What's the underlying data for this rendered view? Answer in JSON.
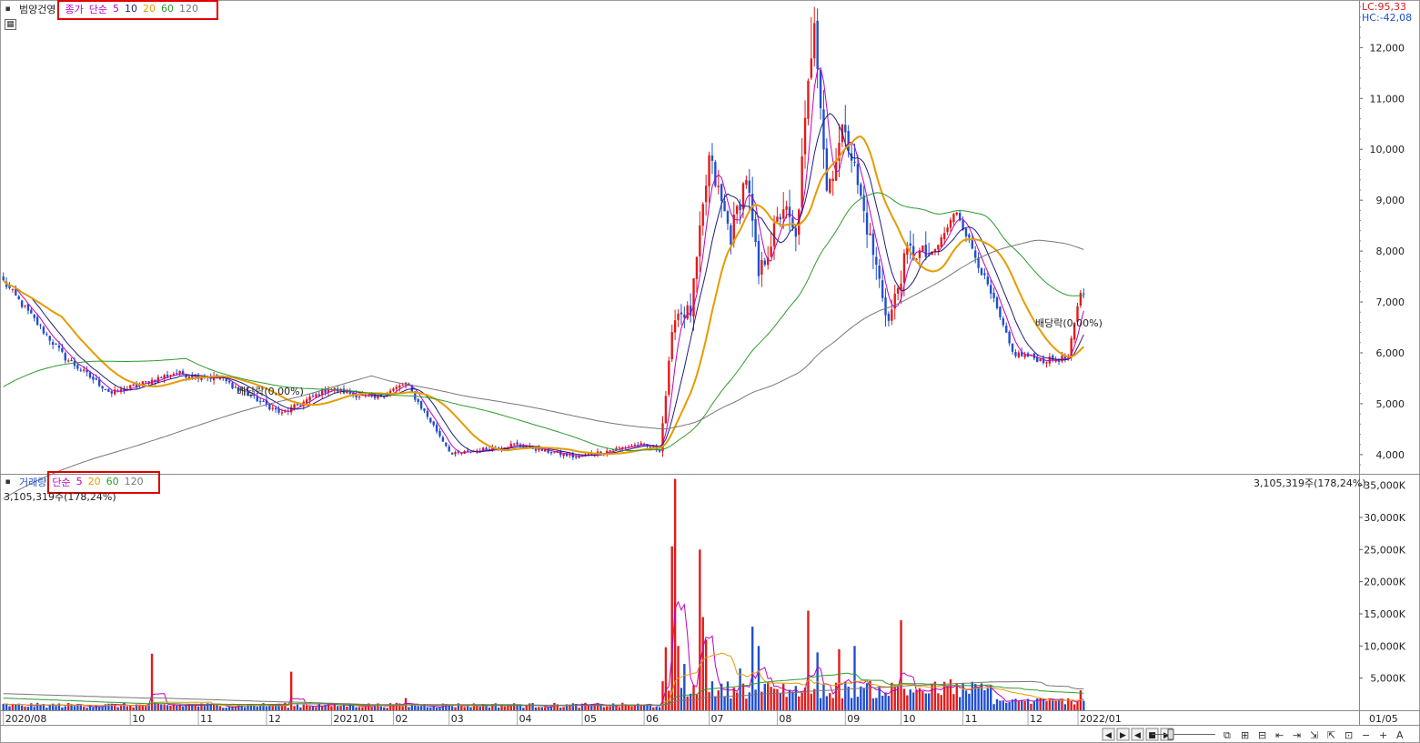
{
  "stock_name": "범양건영",
  "price_panel": {
    "label_type": "종가",
    "label_method": "단순",
    "ma_periods": [
      "5",
      "10",
      "20",
      "60",
      "120"
    ],
    "lc_text": "LC:95,33",
    "hc_text": "HC:-42,08",
    "dividend_marker": "배당락(0,00%)"
  },
  "volume_panel": {
    "label": "거래량",
    "label_method": "단순",
    "ma_periods": [
      "5",
      "20",
      "60",
      "120"
    ],
    "last_volume_left": "3,105,319주(178,24%)",
    "last_volume_right": "3,105,319주(178,24%)"
  },
  "colors": {
    "up": "#e31a1a",
    "down": "#1f4fd0",
    "ma5": "#c000c0",
    "ma10": "#1f1f7a",
    "ma20": "#e69b00",
    "ma60": "#2e9a2e",
    "ma120": "#777777"
  },
  "chart_data": [
    {
      "type": "candlestick",
      "title": "범양건영",
      "x_axis": "date",
      "y_ticks": [
        4000,
        5000,
        6000,
        7000,
        8000,
        9000,
        10000,
        11000,
        12000
      ],
      "y_tick_labels": [
        "4,000",
        "5,000",
        "6,000",
        "7,000",
        "8,000",
        "9,000",
        "10,000",
        "11,000",
        "12,000"
      ],
      "ylim": [
        3640,
        12900
      ],
      "month_labels": [
        "2020/08",
        "10",
        "11",
        "12",
        "2021/01",
        "02",
        "03",
        "04",
        "05",
        "06",
        "07",
        "08",
        "09",
        "10",
        "11",
        "12",
        "2022/01"
      ],
      "right_axis_date_label": "01/05",
      "trading_days": 350,
      "key_points": [
        {
          "day": 0,
          "close": 7400
        },
        {
          "day": 20,
          "close": 5900
        },
        {
          "day": 35,
          "close": 5200
        },
        {
          "day": 55,
          "close": 5600
        },
        {
          "day": 70,
          "close": 5500
        },
        {
          "day": 90,
          "close": 4800
        },
        {
          "day": 105,
          "close": 5300
        },
        {
          "day": 120,
          "close": 5100
        },
        {
          "day": 130,
          "close": 5400
        },
        {
          "day": 145,
          "close": 4000
        },
        {
          "day": 165,
          "close": 4200
        },
        {
          "day": 185,
          "close": 3950
        },
        {
          "day": 205,
          "close": 4200
        },
        {
          "day": 212,
          "close": 4100
        },
        {
          "day": 217,
          "close": 6800
        },
        {
          "day": 222,
          "close": 6800
        },
        {
          "day": 228,
          "close": 9800
        },
        {
          "day": 235,
          "close": 8300
        },
        {
          "day": 240,
          "close": 9500
        },
        {
          "day": 244,
          "close": 7500
        },
        {
          "day": 252,
          "close": 8900
        },
        {
          "day": 256,
          "close": 8200
        },
        {
          "day": 262,
          "close": 12700
        },
        {
          "day": 266,
          "close": 9200
        },
        {
          "day": 272,
          "close": 10500
        },
        {
          "day": 276,
          "close": 9300
        },
        {
          "day": 286,
          "close": 6600
        },
        {
          "day": 292,
          "close": 8000
        },
        {
          "day": 300,
          "close": 7900
        },
        {
          "day": 308,
          "close": 8800
        },
        {
          "day": 320,
          "close": 7000
        },
        {
          "day": 326,
          "close": 6000
        },
        {
          "day": 336,
          "close": 5850
        },
        {
          "day": 344,
          "close": 5900
        },
        {
          "day": 348,
          "close": 7200
        }
      ],
      "ma_lines": [
        "MA5",
        "MA10",
        "MA20",
        "MA60",
        "MA120"
      ]
    },
    {
      "type": "bar",
      "title": "거래량",
      "y_ticks": [
        5000,
        10000,
        15000,
        20000,
        25000,
        30000,
        35000
      ],
      "y_tick_labels": [
        "5,000K",
        "10,000K",
        "15,000K",
        "20,000K",
        "25,000K",
        "30,000K",
        "35,000K"
      ],
      "ylim": [
        0,
        36500
      ],
      "unit": "K shares",
      "baseline": 650,
      "spikes": [
        {
          "day": 48,
          "value": 8800
        },
        {
          "day": 93,
          "value": 6000
        },
        {
          "day": 130,
          "value": 1900
        },
        {
          "day": 214,
          "value": 9800
        },
        {
          "day": 216,
          "value": 25500
        },
        {
          "day": 217,
          "value": 36000
        },
        {
          "day": 218,
          "value": 10000
        },
        {
          "day": 220,
          "value": 7200
        },
        {
          "day": 225,
          "value": 25000
        },
        {
          "day": 226,
          "value": 14500
        },
        {
          "day": 227,
          "value": 11000
        },
        {
          "day": 238,
          "value": 6500
        },
        {
          "day": 242,
          "value": 13000
        },
        {
          "day": 244,
          "value": 10000
        },
        {
          "day": 260,
          "value": 15500
        },
        {
          "day": 263,
          "value": 9000
        },
        {
          "day": 270,
          "value": 9500
        },
        {
          "day": 275,
          "value": 10000
        },
        {
          "day": 290,
          "value": 14000
        },
        {
          "day": 306,
          "value": 4800
        },
        {
          "day": 348,
          "value": 3105
        }
      ],
      "ma_lines": [
        "MA5",
        "MA20",
        "MA60",
        "MA120"
      ]
    }
  ]
}
